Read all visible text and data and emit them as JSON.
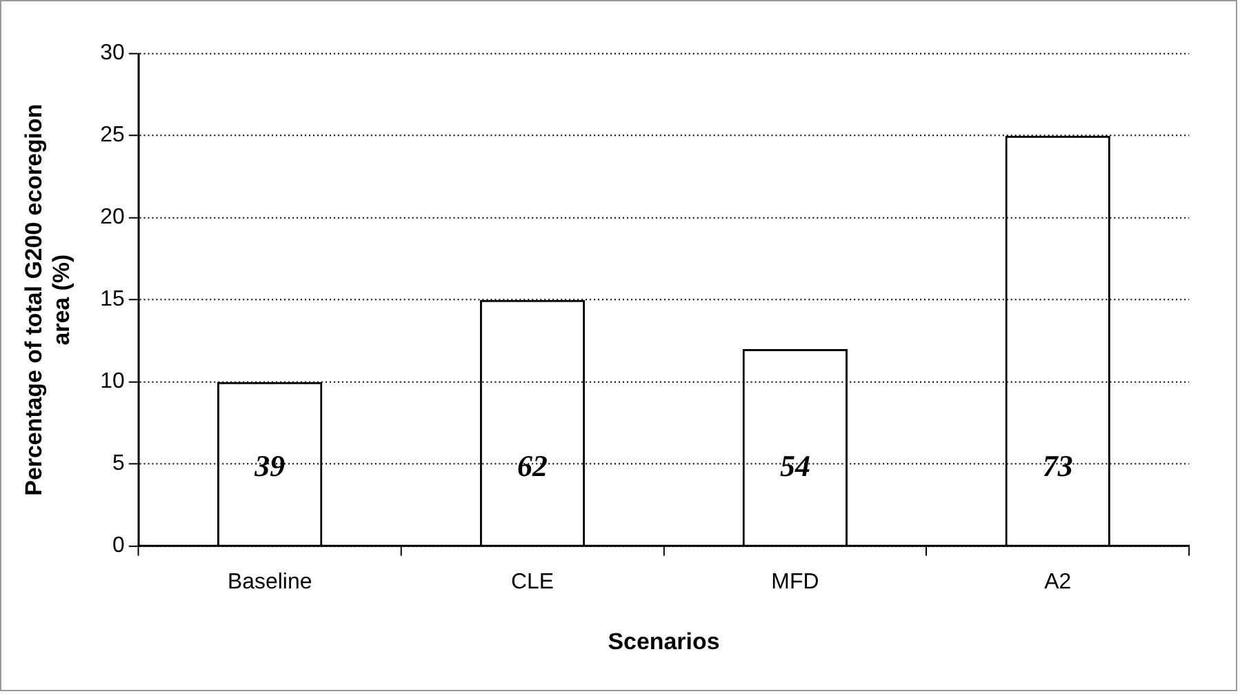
{
  "chart_data": {
    "type": "bar",
    "xlabel": "Scenarios",
    "ylabel": "Percentage of total G200 ecoregion area (%)",
    "categories": [
      "Baseline",
      "CLE",
      "MFD",
      "A2"
    ],
    "values": [
      10,
      15,
      12,
      25
    ],
    "color": "#000000",
    "annotations": [
      "39",
      "62",
      "54",
      "73"
    ],
    "ylim": [
      0,
      30
    ],
    "yticks": [
      0,
      5,
      10,
      15,
      20,
      25,
      30
    ],
    "grid": "y"
  }
}
